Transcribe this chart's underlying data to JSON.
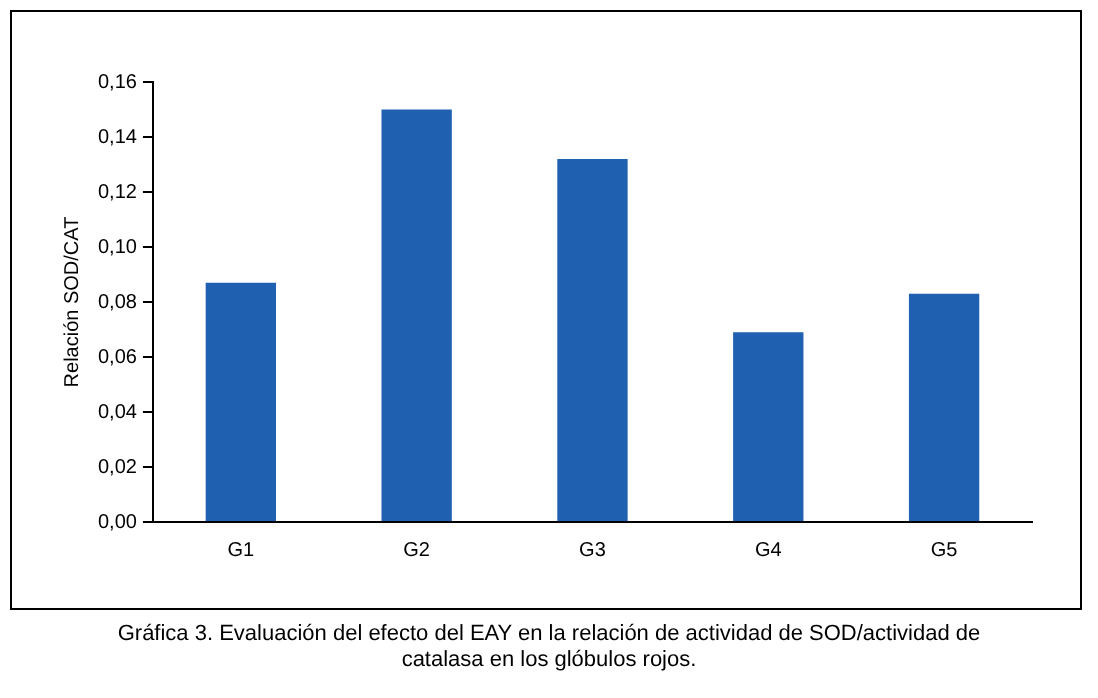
{
  "chart_data": {
    "type": "bar",
    "ylabel": "Relación SOD/CAT",
    "categories": [
      "G1",
      "G2",
      "G3",
      "G4",
      "G5"
    ],
    "values": [
      0.087,
      0.15,
      0.132,
      0.069,
      0.083
    ],
    "color": "#1f60b0",
    "ylim": [
      0,
      0.16
    ],
    "yticks": [
      {
        "value": 0,
        "label": "0,00"
      },
      {
        "value": 0.02,
        "label": "0,02"
      },
      {
        "value": 0.04,
        "label": "0,04"
      },
      {
        "value": 0.06,
        "label": "0,06"
      },
      {
        "value": 0.08,
        "label": "0,08"
      },
      {
        "value": 0.1,
        "label": "0,10"
      },
      {
        "value": 0.12,
        "label": "0,12"
      },
      {
        "value": 0.14,
        "label": "0,14"
      },
      {
        "value": 0.16,
        "label": "0,16"
      }
    ],
    "grid": false,
    "legend": false,
    "annotations": [
      "Gráfica 3. Evaluación del efecto del EAY en la relación de actividad de SOD/actividad de catalasa en los glóbulos  rojos."
    ]
  }
}
